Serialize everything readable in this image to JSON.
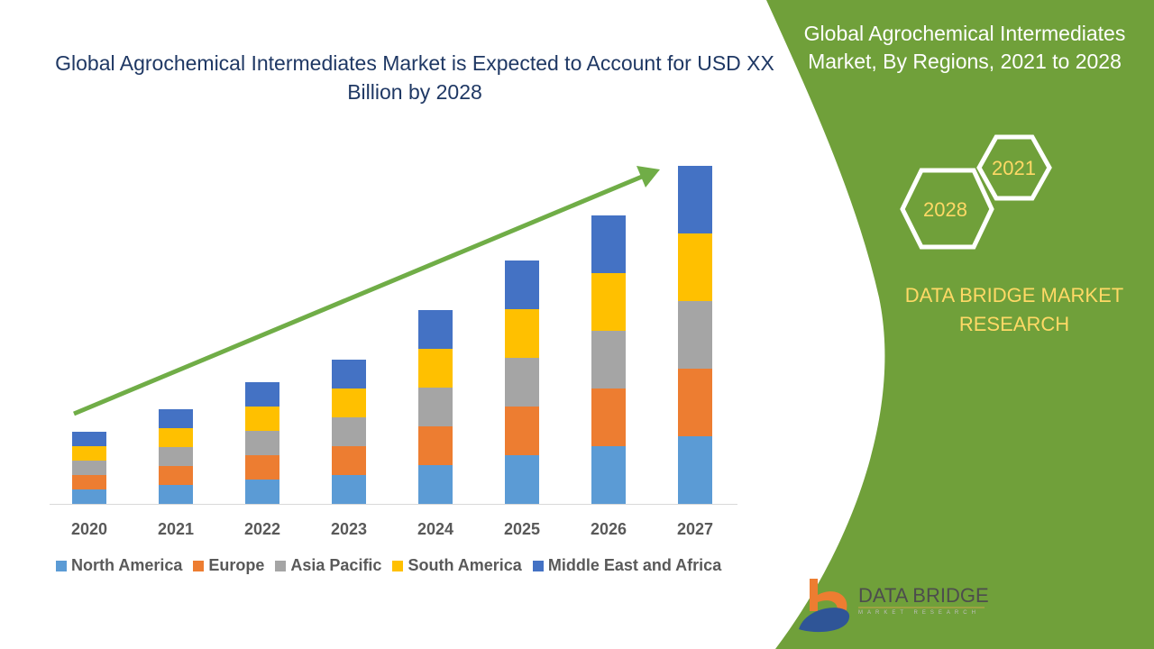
{
  "chart_data": {
    "type": "bar",
    "stacked": true,
    "title": "Global Agrochemical Intermediates Market is Expected to Account for USD XX Billion by 2028",
    "categories": [
      "2020",
      "2021",
      "2022",
      "2023",
      "2024",
      "2025",
      "2026",
      "2027"
    ],
    "series": [
      {
        "name": "North America",
        "color": "#5b9bd5",
        "values": [
          16,
          21,
          27,
          32,
          43,
          54,
          64,
          75
        ]
      },
      {
        "name": "Europe",
        "color": "#ed7d31",
        "values": [
          16,
          21,
          27,
          32,
          43,
          54,
          64,
          75
        ]
      },
      {
        "name": "Asia Pacific",
        "color": "#a5a5a5",
        "values": [
          16,
          21,
          27,
          32,
          43,
          54,
          64,
          75
        ]
      },
      {
        "name": "South America",
        "color": "#ffc000",
        "values": [
          16,
          21,
          27,
          32,
          43,
          54,
          64,
          75
        ]
      },
      {
        "name": "Middle East and Africa",
        "color": "#4472c4",
        "values": [
          16,
          21,
          27,
          32,
          43,
          54,
          64,
          75
        ]
      }
    ],
    "legend": "bottom",
    "grid": false,
    "trend_arrow": true
  },
  "side": {
    "title": "Global Agrochemical Intermediates Market, By Regions, 2021 to 2028",
    "hex_start": "2021",
    "hex_end": "2028",
    "brand": "DATA BRIDGE MARKET RESEARCH",
    "panel_color": "#70a03a"
  },
  "logo": {
    "name": "DATA BRIDGE",
    "sub": "MARKET RESEARCH"
  }
}
